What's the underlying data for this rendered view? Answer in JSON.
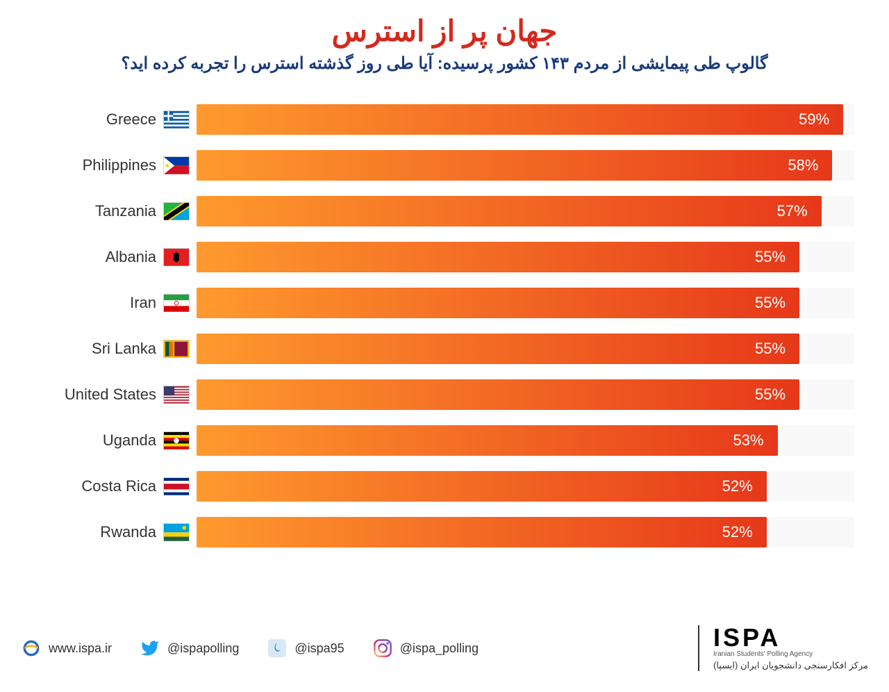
{
  "header": {
    "title": "جهان پر از استرس",
    "title_color": "#d3291f",
    "subtitle": "گالوپ طی پیمایشی از مردم ۱۴۳ کشور پرسیده: آیا طی روز گذشته استرس را تجربه کرده اید؟",
    "subtitle_color": "#1a3a7a"
  },
  "chart": {
    "type": "bar",
    "max_value": 60,
    "bar_gradient_start": "#ff9a2e",
    "bar_gradient_end": "#e6381a",
    "row_bg": "#f9f9f9",
    "label_fontsize": 22,
    "value_fontsize": 22,
    "value_color": "#ffffff",
    "rows": [
      {
        "country": "Greece",
        "value": 59,
        "label": "59%",
        "flag": "greece"
      },
      {
        "country": "Philippines",
        "value": 58,
        "label": "58%",
        "flag": "philippines"
      },
      {
        "country": "Tanzania",
        "value": 57,
        "label": "57%",
        "flag": "tanzania"
      },
      {
        "country": "Albania",
        "value": 55,
        "label": "55%",
        "flag": "albania"
      },
      {
        "country": "Iran",
        "value": 55,
        "label": "55%",
        "flag": "iran"
      },
      {
        "country": "Sri Lanka",
        "value": 55,
        "label": "55%",
        "flag": "srilanka"
      },
      {
        "country": "United States",
        "value": 55,
        "label": "55%",
        "flag": "usa"
      },
      {
        "country": "Uganda",
        "value": 53,
        "label": "53%",
        "flag": "uganda"
      },
      {
        "country": "Costa Rica",
        "value": 52,
        "label": "52%",
        "flag": "costarica"
      },
      {
        "country": "Rwanda",
        "value": 52,
        "label": "52%",
        "flag": "rwanda"
      }
    ]
  },
  "footer": {
    "website": "www.ispa.ir",
    "twitter": "@ispapolling",
    "telegram": "@ispa95",
    "instagram": "@ispa_polling",
    "logo_main": "ISPA",
    "logo_sub": "Iranian Students' Polling Agency",
    "logo_farsi": "مرکز افکارسنجی دانشجویان ایران (ایسپا)"
  },
  "colors": {
    "ie_blue": "#2968c0",
    "ie_yellow": "#f7b314",
    "twitter": "#1da1f2",
    "telegram_bg": "#d9e8f5",
    "telegram_flame": "#2b88d8",
    "instagram_grad": "#d93a8a"
  }
}
